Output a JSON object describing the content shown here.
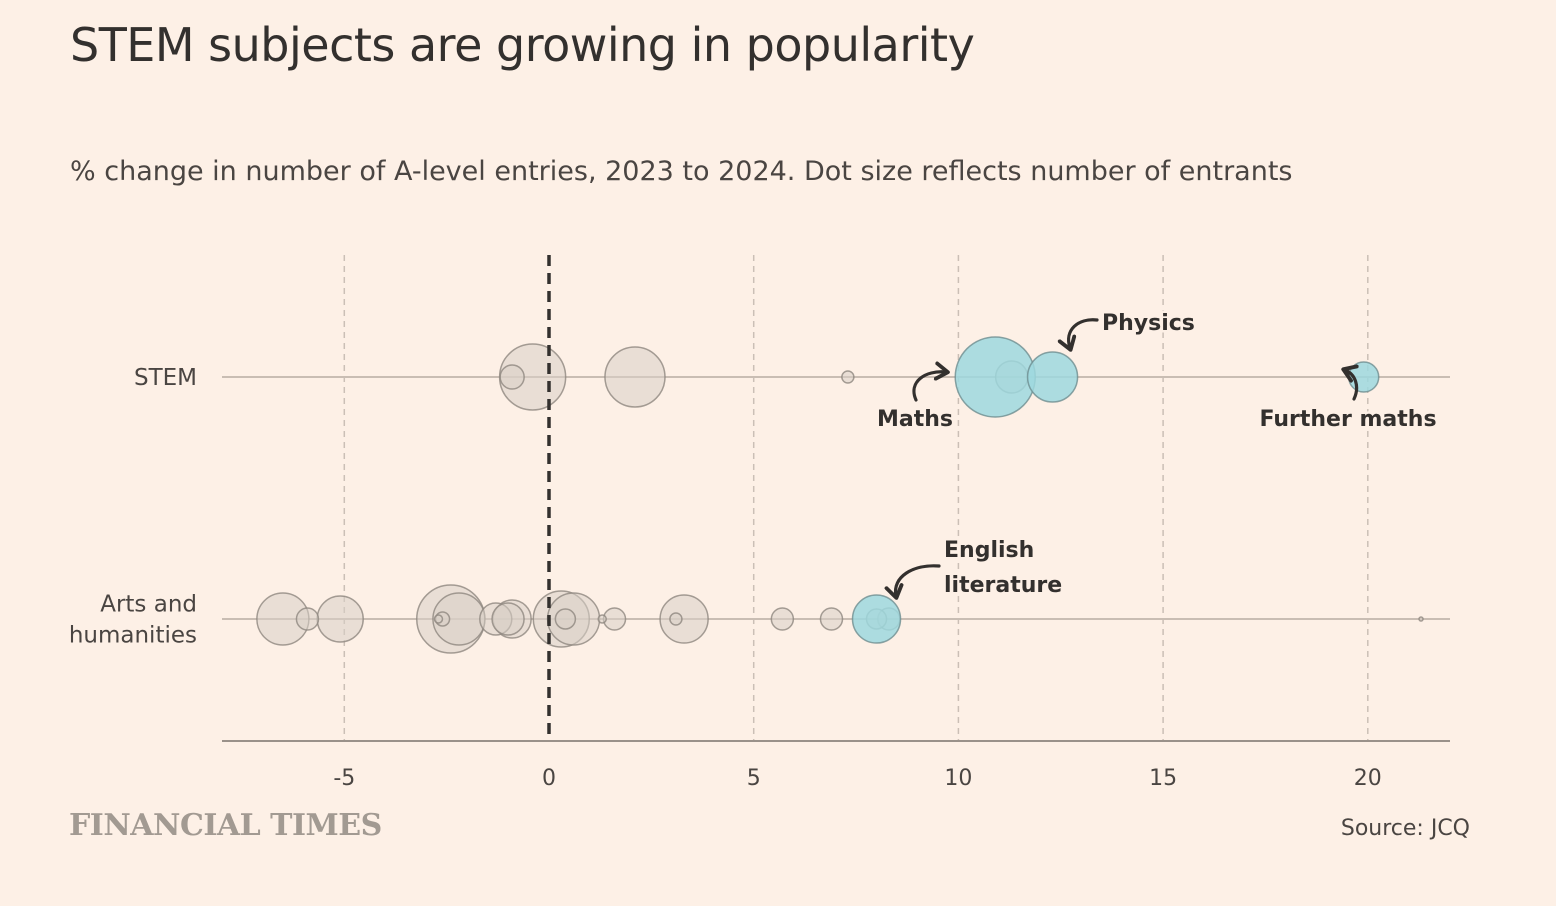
{
  "title": "STEM subjects are growing in popularity",
  "subtitle": "% change in number of A-level entries, 2023 to 2024. Dot size reflects number of entrants",
  "source": "Source: JCQ",
  "logo_text": "FINANCIAL TIMES",
  "colors": {
    "background": "#fdf0e6",
    "bubble_grey": "#d9cfc7",
    "bubble_grey_stroke": "#8f8780",
    "bubble_highlight": "#9ed8de",
    "bubble_highlight_stroke": "#6e8d90",
    "zero_line": "#33302e",
    "grid": "#cbbfb6"
  },
  "chart_data": {
    "type": "scatter",
    "x_axis": {
      "ticks": [
        -5,
        0,
        5,
        10,
        15,
        20
      ],
      "tick_labels": [
        "-5",
        "0",
        "5",
        "10",
        "15",
        "20"
      ],
      "range": [
        -8,
        22
      ]
    },
    "reference_line": 0,
    "grid": true,
    "categories": [
      "STEM",
      "Arts and humanities"
    ],
    "category_labels": [
      [
        "STEM"
      ],
      [
        "Arts and",
        "humanities"
      ]
    ],
    "size_encoding": "number of entrants",
    "series": [
      {
        "category": "STEM",
        "points": [
          {
            "x": -0.4,
            "size": 33,
            "highlight": false
          },
          {
            "x": -0.9,
            "size": 12,
            "highlight": false
          },
          {
            "x": 2.1,
            "size": 30,
            "highlight": false
          },
          {
            "x": 7.3,
            "size": 6,
            "highlight": false
          },
          {
            "x": 10.9,
            "size": 40,
            "highlight": true,
            "label": "Maths"
          },
          {
            "x": 11.3,
            "size": 16,
            "highlight": false
          },
          {
            "x": 12.3,
            "size": 25,
            "highlight": true,
            "label": "Physics"
          },
          {
            "x": 19.9,
            "size": 15,
            "highlight": true,
            "label": "Further maths"
          }
        ]
      },
      {
        "category": "Arts and humanities",
        "points": [
          {
            "x": -6.5,
            "size": 26,
            "highlight": false
          },
          {
            "x": -5.9,
            "size": 11,
            "highlight": false
          },
          {
            "x": -5.1,
            "size": 23,
            "highlight": false
          },
          {
            "x": -2.7,
            "size": 4,
            "highlight": false
          },
          {
            "x": -2.6,
            "size": 7,
            "highlight": false
          },
          {
            "x": -2.4,
            "size": 34,
            "highlight": false
          },
          {
            "x": -2.2,
            "size": 26,
            "highlight": false
          },
          {
            "x": -1.3,
            "size": 16,
            "highlight": false
          },
          {
            "x": -1.0,
            "size": 16,
            "highlight": false
          },
          {
            "x": -0.9,
            "size": 19,
            "highlight": false
          },
          {
            "x": 0.3,
            "size": 28,
            "highlight": false
          },
          {
            "x": 0.6,
            "size": 26,
            "highlight": false
          },
          {
            "x": 0.4,
            "size": 10,
            "highlight": false
          },
          {
            "x": 1.3,
            "size": 4,
            "highlight": false
          },
          {
            "x": 1.6,
            "size": 11,
            "highlight": false
          },
          {
            "x": 3.3,
            "size": 24,
            "highlight": false
          },
          {
            "x": 3.1,
            "size": 6,
            "highlight": false
          },
          {
            "x": 5.7,
            "size": 11,
            "highlight": false
          },
          {
            "x": 6.9,
            "size": 11,
            "highlight": false
          },
          {
            "x": 8.3,
            "size": 11,
            "highlight": false
          },
          {
            "x": 8.0,
            "size": 24,
            "highlight": true,
            "label": "English literature"
          },
          {
            "x": 8.0,
            "size": 10,
            "highlight": false
          },
          {
            "x": 21.3,
            "size": 2,
            "highlight": false
          }
        ]
      }
    ],
    "annotations": [
      {
        "id": "maths",
        "lines": [
          "Maths"
        ]
      },
      {
        "id": "physics",
        "lines": [
          "Physics"
        ]
      },
      {
        "id": "further-maths",
        "lines": [
          "Further maths"
        ]
      },
      {
        "id": "english-literature",
        "lines": [
          "English",
          "literature"
        ]
      }
    ]
  }
}
